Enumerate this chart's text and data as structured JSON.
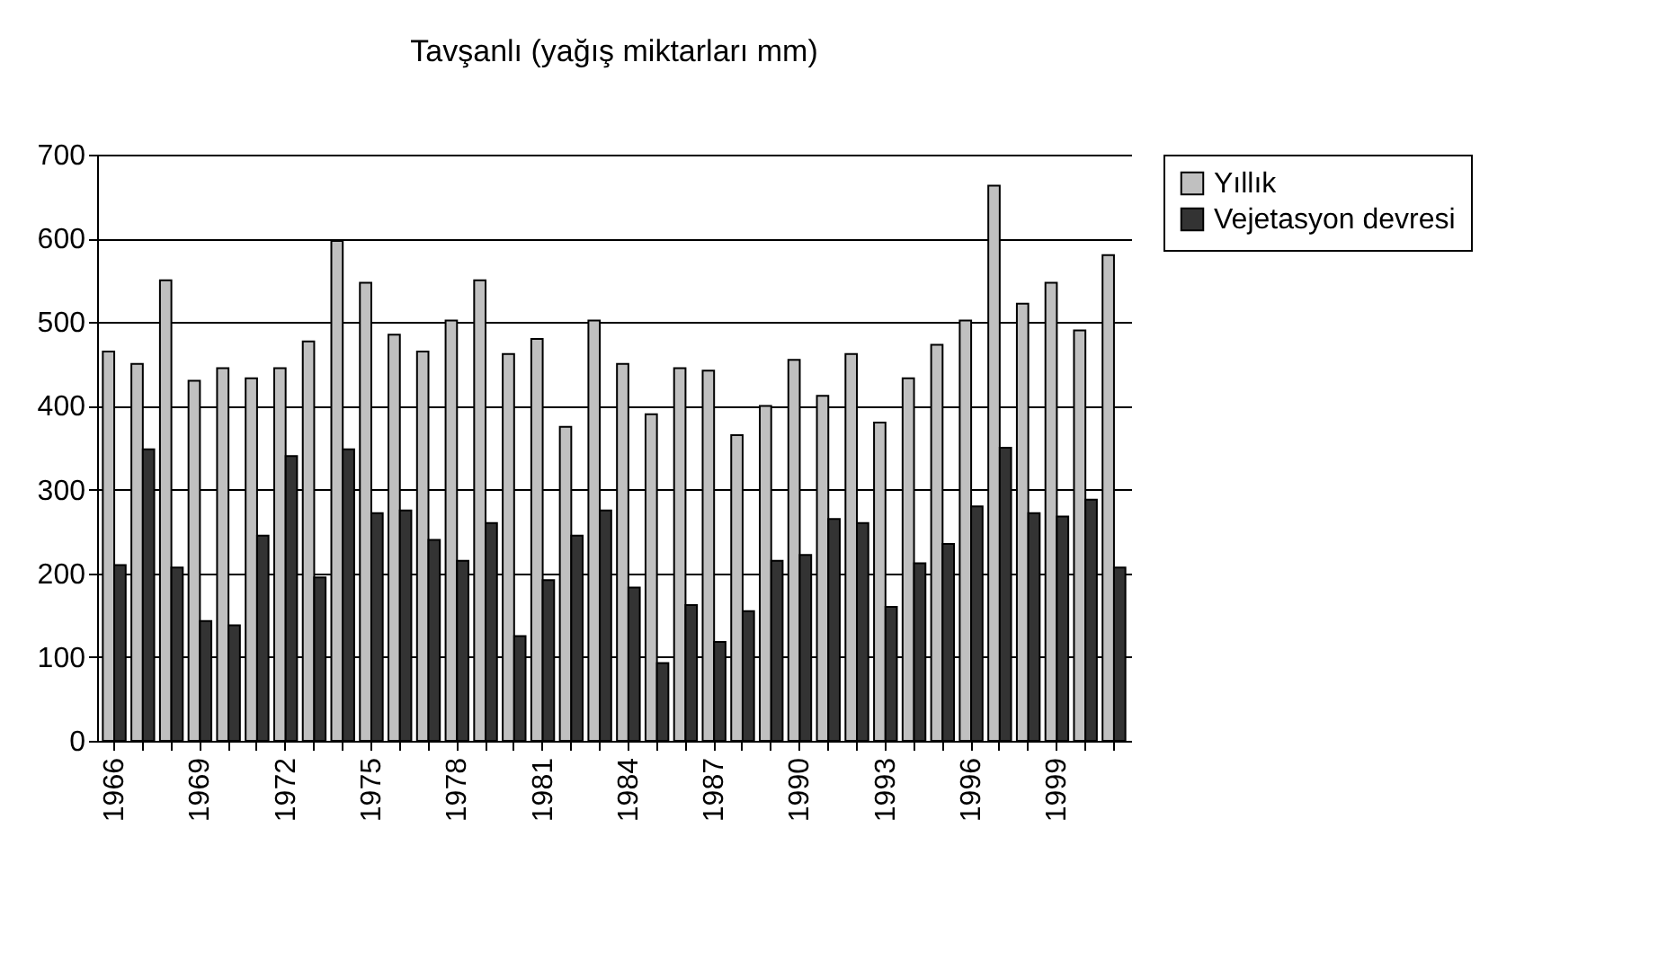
{
  "chart_data": {
    "type": "bar",
    "title": "Tavşanlı (yağış miktarları mm)",
    "categories": [
      "1966",
      null,
      null,
      "1969",
      null,
      null,
      "1972",
      null,
      null,
      "1975",
      null,
      null,
      "1978",
      null,
      null,
      "1981",
      null,
      null,
      "1984",
      null,
      null,
      "1987",
      null,
      null,
      "1990",
      null,
      null,
      "1993",
      null,
      null,
      "1996",
      null,
      null,
      "1999",
      null,
      null
    ],
    "series": [
      {
        "name": "Yıllık",
        "color": "#c0c0c0",
        "values": [
          465,
          450,
          550,
          430,
          445,
          433,
          445,
          477,
          597,
          547,
          485,
          465,
          502,
          550,
          462,
          480,
          375,
          502,
          450,
          390,
          445,
          442,
          365,
          400,
          455,
          412,
          462,
          380,
          433,
          473,
          502,
          663,
          522,
          547,
          490,
          580
        ]
      },
      {
        "name": "Vejetasyon devresi",
        "color": "#333333",
        "values": [
          210,
          348,
          207,
          143,
          138,
          245,
          340,
          195,
          348,
          272,
          275,
          240,
          215,
          260,
          125,
          192,
          245,
          275,
          183,
          93,
          162,
          118,
          155,
          215,
          222,
          265,
          260,
          160,
          212,
          235,
          280,
          350,
          272,
          268,
          288,
          207
        ]
      }
    ],
    "ylim": [
      0,
      700
    ],
    "yticks": [
      0,
      100,
      200,
      300,
      400,
      500,
      600,
      700
    ],
    "grid": "y",
    "legend": "right"
  }
}
